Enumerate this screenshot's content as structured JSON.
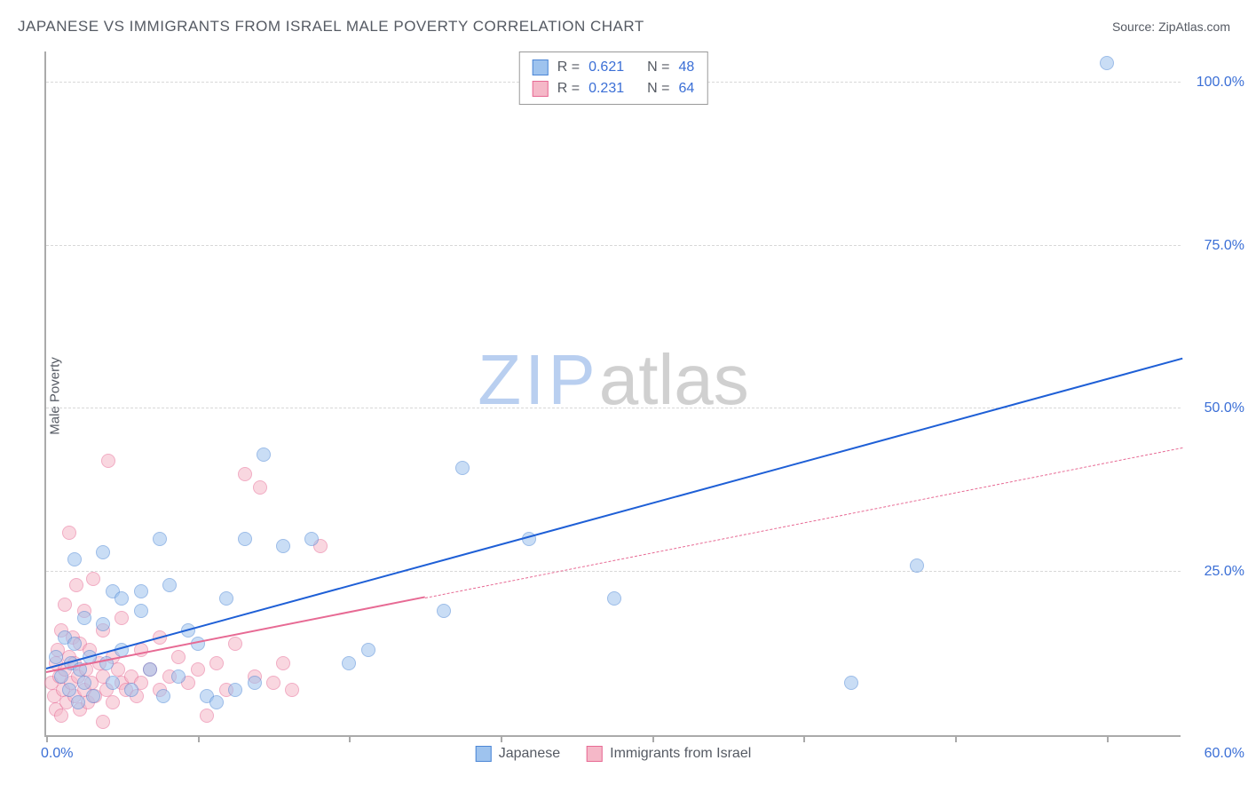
{
  "title": "JAPANESE VS IMMIGRANTS FROM ISRAEL MALE POVERTY CORRELATION CHART",
  "source_prefix": "Source: ",
  "source_name": "ZipAtlas.com",
  "yaxis_label": "Male Poverty",
  "watermark": {
    "part1": "ZIP",
    "part2": "atlas",
    "color1": "#b9cff0",
    "color2": "#d0d0d0"
  },
  "chart": {
    "type": "scatter",
    "background_color": "#ffffff",
    "grid_color": "#d8d8d8",
    "axis_color": "#aaaaaa",
    "label_color": "#3b6fd6",
    "xlim": [
      0,
      60
    ],
    "ylim": [
      0,
      105
    ],
    "x_ticks": [
      0,
      8,
      16,
      24,
      32,
      40,
      48,
      56
    ],
    "x_tick_labels": {
      "0": "0.0%",
      "60": "60.0%"
    },
    "y_gridlines": [
      25,
      50,
      75,
      100
    ],
    "y_tick_labels": {
      "25": "25.0%",
      "50": "50.0%",
      "75": "75.0%",
      "100": "100.0%"
    },
    "marker_radius": 8,
    "marker_opacity": 0.55,
    "series": [
      {
        "name": "Japanese",
        "label": "Japanese",
        "fill_color": "#9ec3ee",
        "stroke_color": "#4d87d6",
        "R": "0.621",
        "N": "48",
        "trend": {
          "x1": 0,
          "y1": 10.0,
          "x2": 60,
          "y2": 57.5,
          "solid_until_x": 60,
          "color": "#1e5fd6",
          "width": 2.5
        },
        "points": [
          [
            0.5,
            12
          ],
          [
            0.8,
            9
          ],
          [
            1.0,
            15
          ],
          [
            1.2,
            7
          ],
          [
            1.3,
            11
          ],
          [
            1.5,
            14
          ],
          [
            1.5,
            27
          ],
          [
            1.7,
            5
          ],
          [
            1.8,
            10
          ],
          [
            2.0,
            18
          ],
          [
            2.0,
            8
          ],
          [
            2.3,
            12
          ],
          [
            2.5,
            6
          ],
          [
            3.0,
            17
          ],
          [
            3.0,
            28
          ],
          [
            3.2,
            11
          ],
          [
            3.5,
            8
          ],
          [
            3.5,
            22
          ],
          [
            4.0,
            13
          ],
          [
            4.0,
            21
          ],
          [
            4.5,
            7
          ],
          [
            5.0,
            19
          ],
          [
            5.0,
            22
          ],
          [
            5.5,
            10
          ],
          [
            6.0,
            30
          ],
          [
            6.2,
            6
          ],
          [
            6.5,
            23
          ],
          [
            7.0,
            9
          ],
          [
            7.5,
            16
          ],
          [
            8.0,
            14
          ],
          [
            8.5,
            6
          ],
          [
            9.0,
            5
          ],
          [
            9.5,
            21
          ],
          [
            10.0,
            7
          ],
          [
            10.5,
            30
          ],
          [
            11.0,
            8
          ],
          [
            11.5,
            43
          ],
          [
            12.5,
            29
          ],
          [
            14.0,
            30
          ],
          [
            16.0,
            11
          ],
          [
            17.0,
            13
          ],
          [
            21.0,
            19
          ],
          [
            22.0,
            41
          ],
          [
            25.5,
            30
          ],
          [
            30.0,
            21
          ],
          [
            42.5,
            8
          ],
          [
            46.0,
            26
          ],
          [
            56.0,
            103
          ]
        ]
      },
      {
        "name": "Immigrants from Israel",
        "label": "Immigrants from Israel",
        "fill_color": "#f5b8c8",
        "stroke_color": "#e76a94",
        "R": "0.231",
        "N": "64",
        "trend": {
          "x1": 0,
          "y1": 9.5,
          "x2": 60,
          "y2": 44.0,
          "solid_until_x": 20,
          "color": "#e76a94",
          "width": 2
        },
        "points": [
          [
            0.3,
            8
          ],
          [
            0.4,
            6
          ],
          [
            0.5,
            11
          ],
          [
            0.5,
            4
          ],
          [
            0.6,
            13
          ],
          [
            0.7,
            9
          ],
          [
            0.8,
            16
          ],
          [
            0.8,
            3
          ],
          [
            0.9,
            7
          ],
          [
            1.0,
            10
          ],
          [
            1.0,
            20
          ],
          [
            1.1,
            5
          ],
          [
            1.2,
            12
          ],
          [
            1.2,
            31
          ],
          [
            1.3,
            8
          ],
          [
            1.4,
            15
          ],
          [
            1.5,
            6
          ],
          [
            1.5,
            11
          ],
          [
            1.6,
            23
          ],
          [
            1.7,
            9
          ],
          [
            1.8,
            4
          ],
          [
            1.8,
            14
          ],
          [
            2.0,
            7
          ],
          [
            2.0,
            19
          ],
          [
            2.1,
            10
          ],
          [
            2.2,
            5
          ],
          [
            2.3,
            13
          ],
          [
            2.4,
            8
          ],
          [
            2.5,
            24
          ],
          [
            2.6,
            6
          ],
          [
            2.8,
            11
          ],
          [
            3.0,
            9
          ],
          [
            3.0,
            16
          ],
          [
            3.2,
            7
          ],
          [
            3.3,
            42
          ],
          [
            3.5,
            12
          ],
          [
            3.5,
            5
          ],
          [
            3.8,
            10
          ],
          [
            4.0,
            8
          ],
          [
            4.0,
            18
          ],
          [
            4.2,
            7
          ],
          [
            4.5,
            9
          ],
          [
            4.8,
            6
          ],
          [
            5.0,
            13
          ],
          [
            5.0,
            8
          ],
          [
            5.5,
            10
          ],
          [
            6.0,
            7
          ],
          [
            6.0,
            15
          ],
          [
            6.5,
            9
          ],
          [
            7.0,
            12
          ],
          [
            7.5,
            8
          ],
          [
            8.0,
            10
          ],
          [
            8.5,
            3
          ],
          [
            9.0,
            11
          ],
          [
            9.5,
            7
          ],
          [
            10.0,
            14
          ],
          [
            10.5,
            40
          ],
          [
            11.0,
            9
          ],
          [
            11.3,
            38
          ],
          [
            12.0,
            8
          ],
          [
            12.5,
            11
          ],
          [
            13.0,
            7
          ],
          [
            14.5,
            29
          ],
          [
            3.0,
            2
          ]
        ]
      }
    ]
  },
  "legend_top": {
    "R_label": "R =",
    "N_label": "N =",
    "text_color": "#555a63",
    "value_color": "#3b6fd6"
  },
  "legend_bottom_color": "#555a63"
}
